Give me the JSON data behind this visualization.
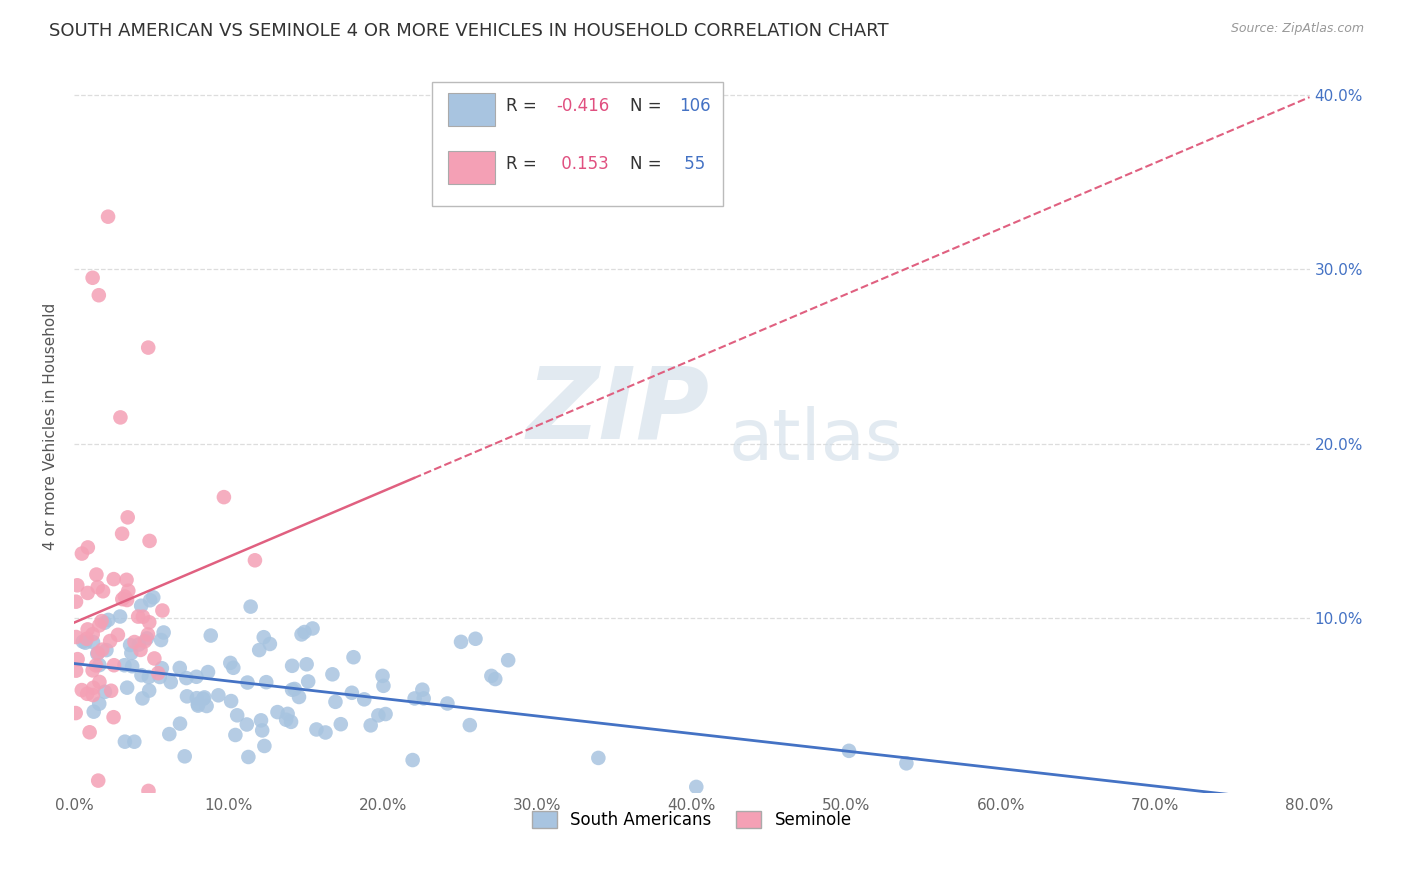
{
  "title": "SOUTH AMERICAN VS SEMINOLE 4 OR MORE VEHICLES IN HOUSEHOLD CORRELATION CHART",
  "source": "Source: ZipAtlas.com",
  "ylabel": "4 or more Vehicles in Household",
  "xlim": [
    0.0,
    0.8
  ],
  "ylim": [
    0.0,
    0.42
  ],
  "xtick_labels": [
    "0.0%",
    "10.0%",
    "20.0%",
    "30.0%",
    "40.0%",
    "50.0%",
    "60.0%",
    "70.0%",
    "80.0%"
  ],
  "xtick_vals": [
    0.0,
    0.1,
    0.2,
    0.3,
    0.4,
    0.5,
    0.6,
    0.7,
    0.8
  ],
  "ytick_labels": [
    "10.0%",
    "20.0%",
    "30.0%",
    "40.0%"
  ],
  "ytick_vals": [
    0.1,
    0.2,
    0.3,
    0.4
  ],
  "blue_color": "#a8c4e0",
  "pink_color": "#f4a0b5",
  "blue_line_color": "#4472c4",
  "pink_line_color": "#e06080",
  "R_blue": -0.416,
  "N_blue": 106,
  "R_pink": 0.153,
  "N_pink": 55,
  "watermark_zip": "ZIP",
  "watermark_atlas": "atlas",
  "title_fontsize": 13,
  "axis_label_fontsize": 11,
  "tick_fontsize": 11,
  "legend_fontsize": 12,
  "right_tick_color": "#4472c4",
  "seed_blue": 42,
  "seed_pink": 7
}
